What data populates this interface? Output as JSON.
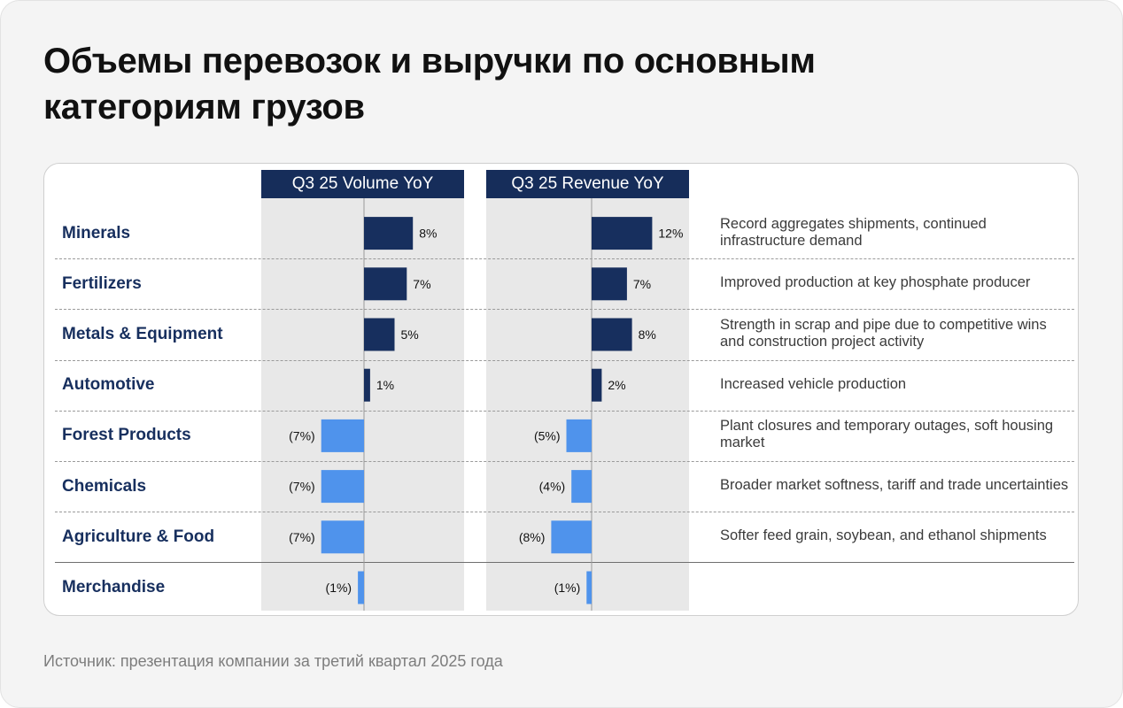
{
  "title": "Объемы перевозок и выручки по основным категориям грузов",
  "source": "Источник: презентация компании за третий квартал 2025 года",
  "colors": {
    "positive": "#172f5e",
    "negative": "#4f93ec",
    "header_bg": "#162d5a",
    "label": "#172f5e"
  },
  "chart_data": {
    "type": "bar",
    "orientation": "horizontal",
    "categories": [
      "Minerals",
      "Fertilizers",
      "Metals & Equipment",
      "Automotive",
      "Forest Products",
      "Chemicals",
      "Agriculture & Food",
      "Merchandise"
    ],
    "series": [
      {
        "name": "Q3 25 Volume YoY",
        "values": [
          8,
          7,
          5,
          1,
          -7,
          -7,
          -7,
          -1
        ],
        "labels": [
          "8%",
          "7%",
          "5%",
          "1%",
          "(7%)",
          "(7%)",
          "(7%)",
          "(1%)"
        ]
      },
      {
        "name": "Q3 25 Revenue YoY",
        "values": [
          12,
          7,
          8,
          2,
          -5,
          -4,
          -8,
          -1
        ],
        "labels": [
          "12%",
          "7%",
          "8%",
          "2%",
          "(5%)",
          "(4%)",
          "(8%)",
          "(1%)"
        ]
      }
    ],
    "unit": "%",
    "comments": [
      "Record aggregates shipments, continued infrastructure demand",
      "Improved production at key phosphate producer",
      "Strength in scrap and pipe due to competitive wins and construction project activity",
      "Increased vehicle production",
      "Plant closures and temporary outages, soft housing market",
      "Broader market softness, tariff and trade uncertainties",
      "Softer feed grain, soybean, and ethanol shipments",
      ""
    ]
  }
}
